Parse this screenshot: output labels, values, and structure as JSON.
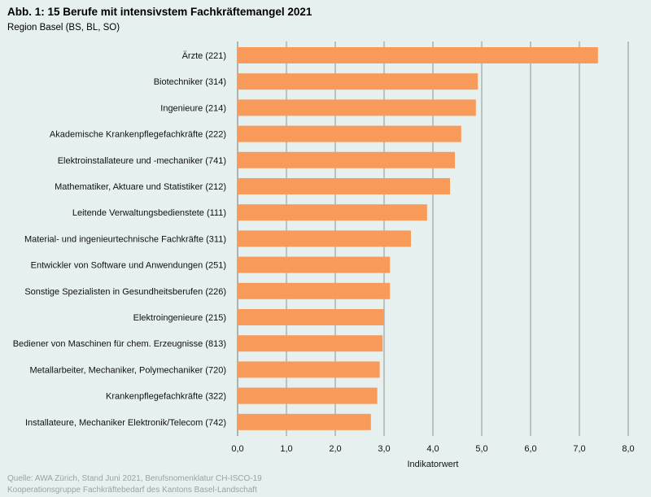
{
  "header": {
    "title": "Abb. 1: 15 Berufe mit intensivstem Fachkräftemangel 2021",
    "subtitle": "Region Basel (BS, BL, SO)"
  },
  "footer": {
    "source": "Quelle: AWA Zürich, Stand Juni 2021, Berufsnomenklatur CH-ISCO-19",
    "credit": "Kooperationsgruppe Fachkräftebedarf des Kantons Basel-Landschaft"
  },
  "colors": {
    "bar": "#f79a5a",
    "grid": "#8c9595",
    "background": "#e6f0ef"
  },
  "chart_data": {
    "type": "bar",
    "orientation": "horizontal",
    "title": "Abb. 1: 15 Berufe mit intensivstem Fachkräftemangel 2021",
    "subtitle": "Region Basel (BS, BL, SO)",
    "xlabel": "Indikatorwert",
    "ylabel": "",
    "xlim": [
      0,
      8
    ],
    "xticks": [
      0,
      1,
      2,
      3,
      4,
      5,
      6,
      7,
      8
    ],
    "xtick_labels": [
      "0,0",
      "1,0",
      "2,0",
      "3,0",
      "4,0",
      "5,0",
      "6,0",
      "7,0",
      "8,0"
    ],
    "grid": "vertical",
    "categories": [
      "Ärzte (221)",
      "Biotechniker (314)",
      "Ingenieure (214)",
      "Akademische Krankenpflegefachkräfte (222)",
      "Elektroinstallateure und -mechaniker (741)",
      "Mathematiker, Aktuare und Statistiker (212)",
      "Leitende Verwaltungsbedienstete (111)",
      "Material- und ingenieurtechnische Fachkräfte (311)",
      "Entwickler von Software und Anwendungen (251)",
      "Sonstige Spezialisten in Gesundheitsberufen (226)",
      "Elektroingenieure (215)",
      "Bediener von Maschinen für chem. Erzeugnisse (813)",
      "Metallarbeiter, Mechaniker, Polymechaniker (720)",
      "Krankenpflegefachkräfte (322)",
      "Installateure, Mechaniker Elektronik/Telecom (742)"
    ],
    "values": [
      7.38,
      4.92,
      4.88,
      4.58,
      4.45,
      4.35,
      3.88,
      3.55,
      3.12,
      3.12,
      3.0,
      2.97,
      2.91,
      2.86,
      2.73
    ]
  }
}
